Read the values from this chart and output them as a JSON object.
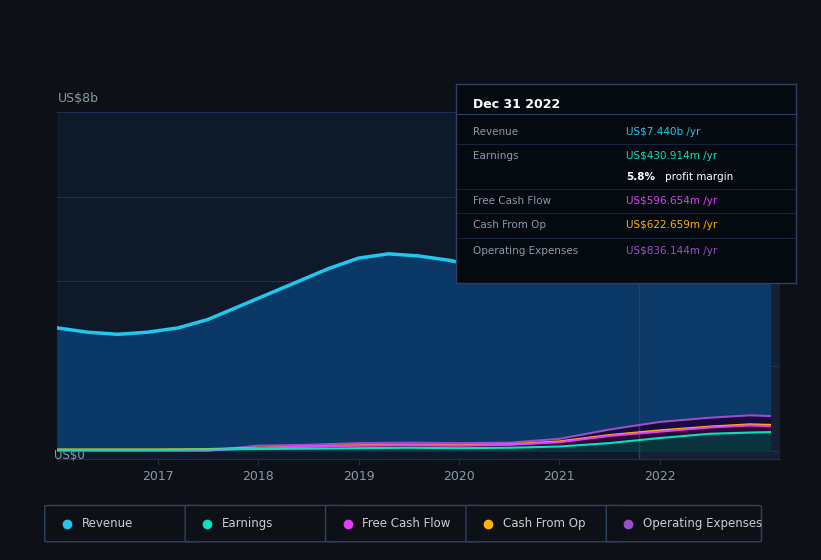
{
  "bg_color": "#0d1117",
  "plot_bg_color": "#0e1929",
  "highlight_bg": "#162035",
  "grid_color": "#1e3050",
  "title_y_label": "US$8b",
  "bottom_y_label": "US$0",
  "x_ticks": [
    2017,
    2018,
    2019,
    2020,
    2021,
    2022
  ],
  "x_min": 2016.0,
  "x_max": 2023.2,
  "y_min": -0.2,
  "y_max": 8.0,
  "highlight_x_start": 2021.8,
  "highlight_x_end": 2023.2,
  "revenue": {
    "x": [
      2016.0,
      2016.3,
      2016.6,
      2016.9,
      2017.2,
      2017.5,
      2017.8,
      2018.1,
      2018.4,
      2018.7,
      2019.0,
      2019.3,
      2019.6,
      2019.9,
      2020.2,
      2020.5,
      2020.8,
      2021.1,
      2021.4,
      2021.7,
      2022.0,
      2022.3,
      2022.6,
      2022.9,
      2023.1
    ],
    "y": [
      2.9,
      2.8,
      2.75,
      2.8,
      2.9,
      3.1,
      3.4,
      3.7,
      4.0,
      4.3,
      4.55,
      4.65,
      4.6,
      4.5,
      4.35,
      4.2,
      4.1,
      4.15,
      4.5,
      5.2,
      6.0,
      6.9,
      7.5,
      7.44,
      7.3
    ],
    "color": "#1ec8f0",
    "fill_color": "#0a3c6e",
    "label": "Revenue",
    "linewidth": 2.5
  },
  "earnings": {
    "x": [
      2016.0,
      2016.5,
      2017.0,
      2017.5,
      2018.0,
      2018.5,
      2019.0,
      2019.5,
      2020.0,
      2020.5,
      2021.0,
      2021.5,
      2022.0,
      2022.5,
      2022.9,
      2023.1
    ],
    "y": [
      0.02,
      0.02,
      0.02,
      0.03,
      0.04,
      0.05,
      0.06,
      0.07,
      0.06,
      0.07,
      0.1,
      0.18,
      0.3,
      0.4,
      0.43,
      0.44
    ],
    "color": "#00e5c0",
    "fill_color": "#004040",
    "label": "Earnings",
    "linewidth": 1.5
  },
  "free_cash_flow": {
    "x": [
      2016.0,
      2016.5,
      2017.0,
      2017.5,
      2018.0,
      2018.5,
      2019.0,
      2019.5,
      2020.0,
      2020.5,
      2021.0,
      2021.5,
      2022.0,
      2022.5,
      2022.9,
      2023.1
    ],
    "y": [
      0.01,
      0.01,
      0.01,
      0.01,
      0.06,
      0.1,
      0.12,
      0.13,
      0.12,
      0.14,
      0.2,
      0.35,
      0.45,
      0.55,
      0.597,
      0.58
    ],
    "color": "#e040fb",
    "fill_color": "#2d0040",
    "label": "Free Cash Flow",
    "linewidth": 1.5
  },
  "cash_from_op": {
    "x": [
      2016.0,
      2016.5,
      2017.0,
      2017.5,
      2018.0,
      2018.5,
      2019.0,
      2019.5,
      2020.0,
      2020.5,
      2021.0,
      2021.5,
      2022.0,
      2022.5,
      2022.9,
      2023.1
    ],
    "y": [
      0.03,
      0.03,
      0.03,
      0.04,
      0.07,
      0.1,
      0.13,
      0.14,
      0.13,
      0.15,
      0.22,
      0.37,
      0.48,
      0.57,
      0.623,
      0.61
    ],
    "color": "#ffb300",
    "fill_color": "#3d2a00",
    "label": "Cash From Op",
    "linewidth": 1.5
  },
  "operating_expenses": {
    "x": [
      2016.0,
      2016.5,
      2017.0,
      2017.5,
      2018.0,
      2018.5,
      2019.0,
      2019.5,
      2020.0,
      2020.5,
      2021.0,
      2021.5,
      2022.0,
      2022.5,
      2022.9,
      2023.1
    ],
    "y": [
      0.0,
      0.0,
      0.0,
      0.0,
      0.12,
      0.14,
      0.18,
      0.19,
      0.18,
      0.19,
      0.28,
      0.5,
      0.68,
      0.78,
      0.836,
      0.82
    ],
    "color": "#9c4dcc",
    "fill_color": "#1a0030",
    "label": "Operating Expenses",
    "linewidth": 1.5
  },
  "tooltip": {
    "title": "Dec 31 2022",
    "data_rows": [
      {
        "label": "Revenue",
        "value": "US$7.440b /yr",
        "value_color": "#1ec8f0",
        "has_sep": true
      },
      {
        "label": "Earnings",
        "value": "US$430.914m /yr",
        "value_color": "#00e5c0",
        "has_sep": false
      },
      {
        "label": "",
        "value": "5.8% profit margin",
        "value_color": "#ffffff",
        "has_sep": true,
        "bold_part": "5.8%"
      },
      {
        "label": "Free Cash Flow",
        "value": "US$596.654m /yr",
        "value_color": "#e040fb",
        "has_sep": true
      },
      {
        "label": "Cash From Op",
        "value": "US$622.659m /yr",
        "value_color": "#ffb300",
        "has_sep": true
      },
      {
        "label": "Operating Expenses",
        "value": "US$836.144m /yr",
        "value_color": "#9c4dcc",
        "has_sep": false
      }
    ]
  },
  "legend_items": [
    {
      "label": "Revenue",
      "color": "#1ec8f0"
    },
    {
      "label": "Earnings",
      "color": "#00e5c0"
    },
    {
      "label": "Free Cash Flow",
      "color": "#e040fb"
    },
    {
      "label": "Cash From Op",
      "color": "#ffb300"
    },
    {
      "label": "Operating Expenses",
      "color": "#9c4dcc"
    }
  ]
}
